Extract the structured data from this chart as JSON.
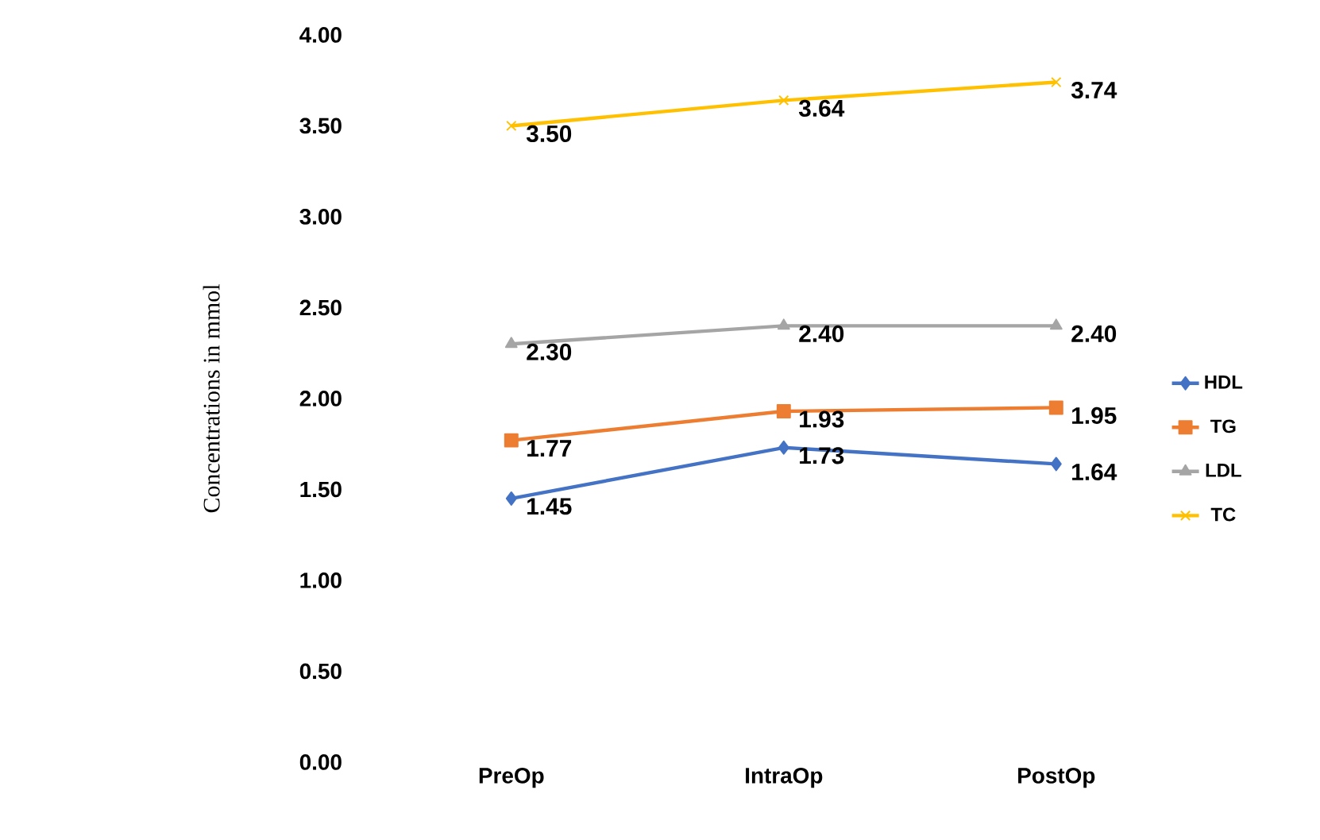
{
  "chart_data": {
    "type": "line",
    "ylabel": "Concentrations in mmol",
    "categories": [
      "PreOp",
      "IntraOp",
      "PostOp"
    ],
    "series": [
      {
        "name": "HDL",
        "color": "#4472c4",
        "marker": "diamond",
        "values": [
          1.45,
          1.73,
          1.64
        ],
        "value_labels": [
          "1.45",
          "1.73",
          "1.64"
        ]
      },
      {
        "name": "TG",
        "color": "#ed7d31",
        "marker": "square",
        "values": [
          1.77,
          1.93,
          1.95
        ],
        "value_labels": [
          "1.77",
          "1.93",
          "1.95"
        ]
      },
      {
        "name": "LDL",
        "color": "#a5a5a5",
        "marker": "triangle",
        "values": [
          2.3,
          2.4,
          2.4
        ],
        "value_labels": [
          "2.30",
          "2.40",
          "2.40"
        ]
      },
      {
        "name": "TC",
        "color": "#ffc000",
        "marker": "cross",
        "values": [
          3.5,
          3.64,
          3.74
        ],
        "value_labels": [
          "3.50",
          "3.64",
          "3.74"
        ]
      }
    ],
    "ylim": [
      0,
      4
    ],
    "yticks": [
      {
        "value": 0,
        "label": "0.00"
      },
      {
        "value": 0.5,
        "label": "0.50"
      },
      {
        "value": 1,
        "label": "1.00"
      },
      {
        "value": 1.5,
        "label": "1.50"
      },
      {
        "value": 2,
        "label": "2.00"
      },
      {
        "value": 2.5,
        "label": "2.50"
      },
      {
        "value": 3,
        "label": "3.00"
      },
      {
        "value": 3.5,
        "label": "3.50"
      },
      {
        "value": 4,
        "label": "4.00"
      }
    ],
    "grid": false,
    "legend": "right"
  }
}
